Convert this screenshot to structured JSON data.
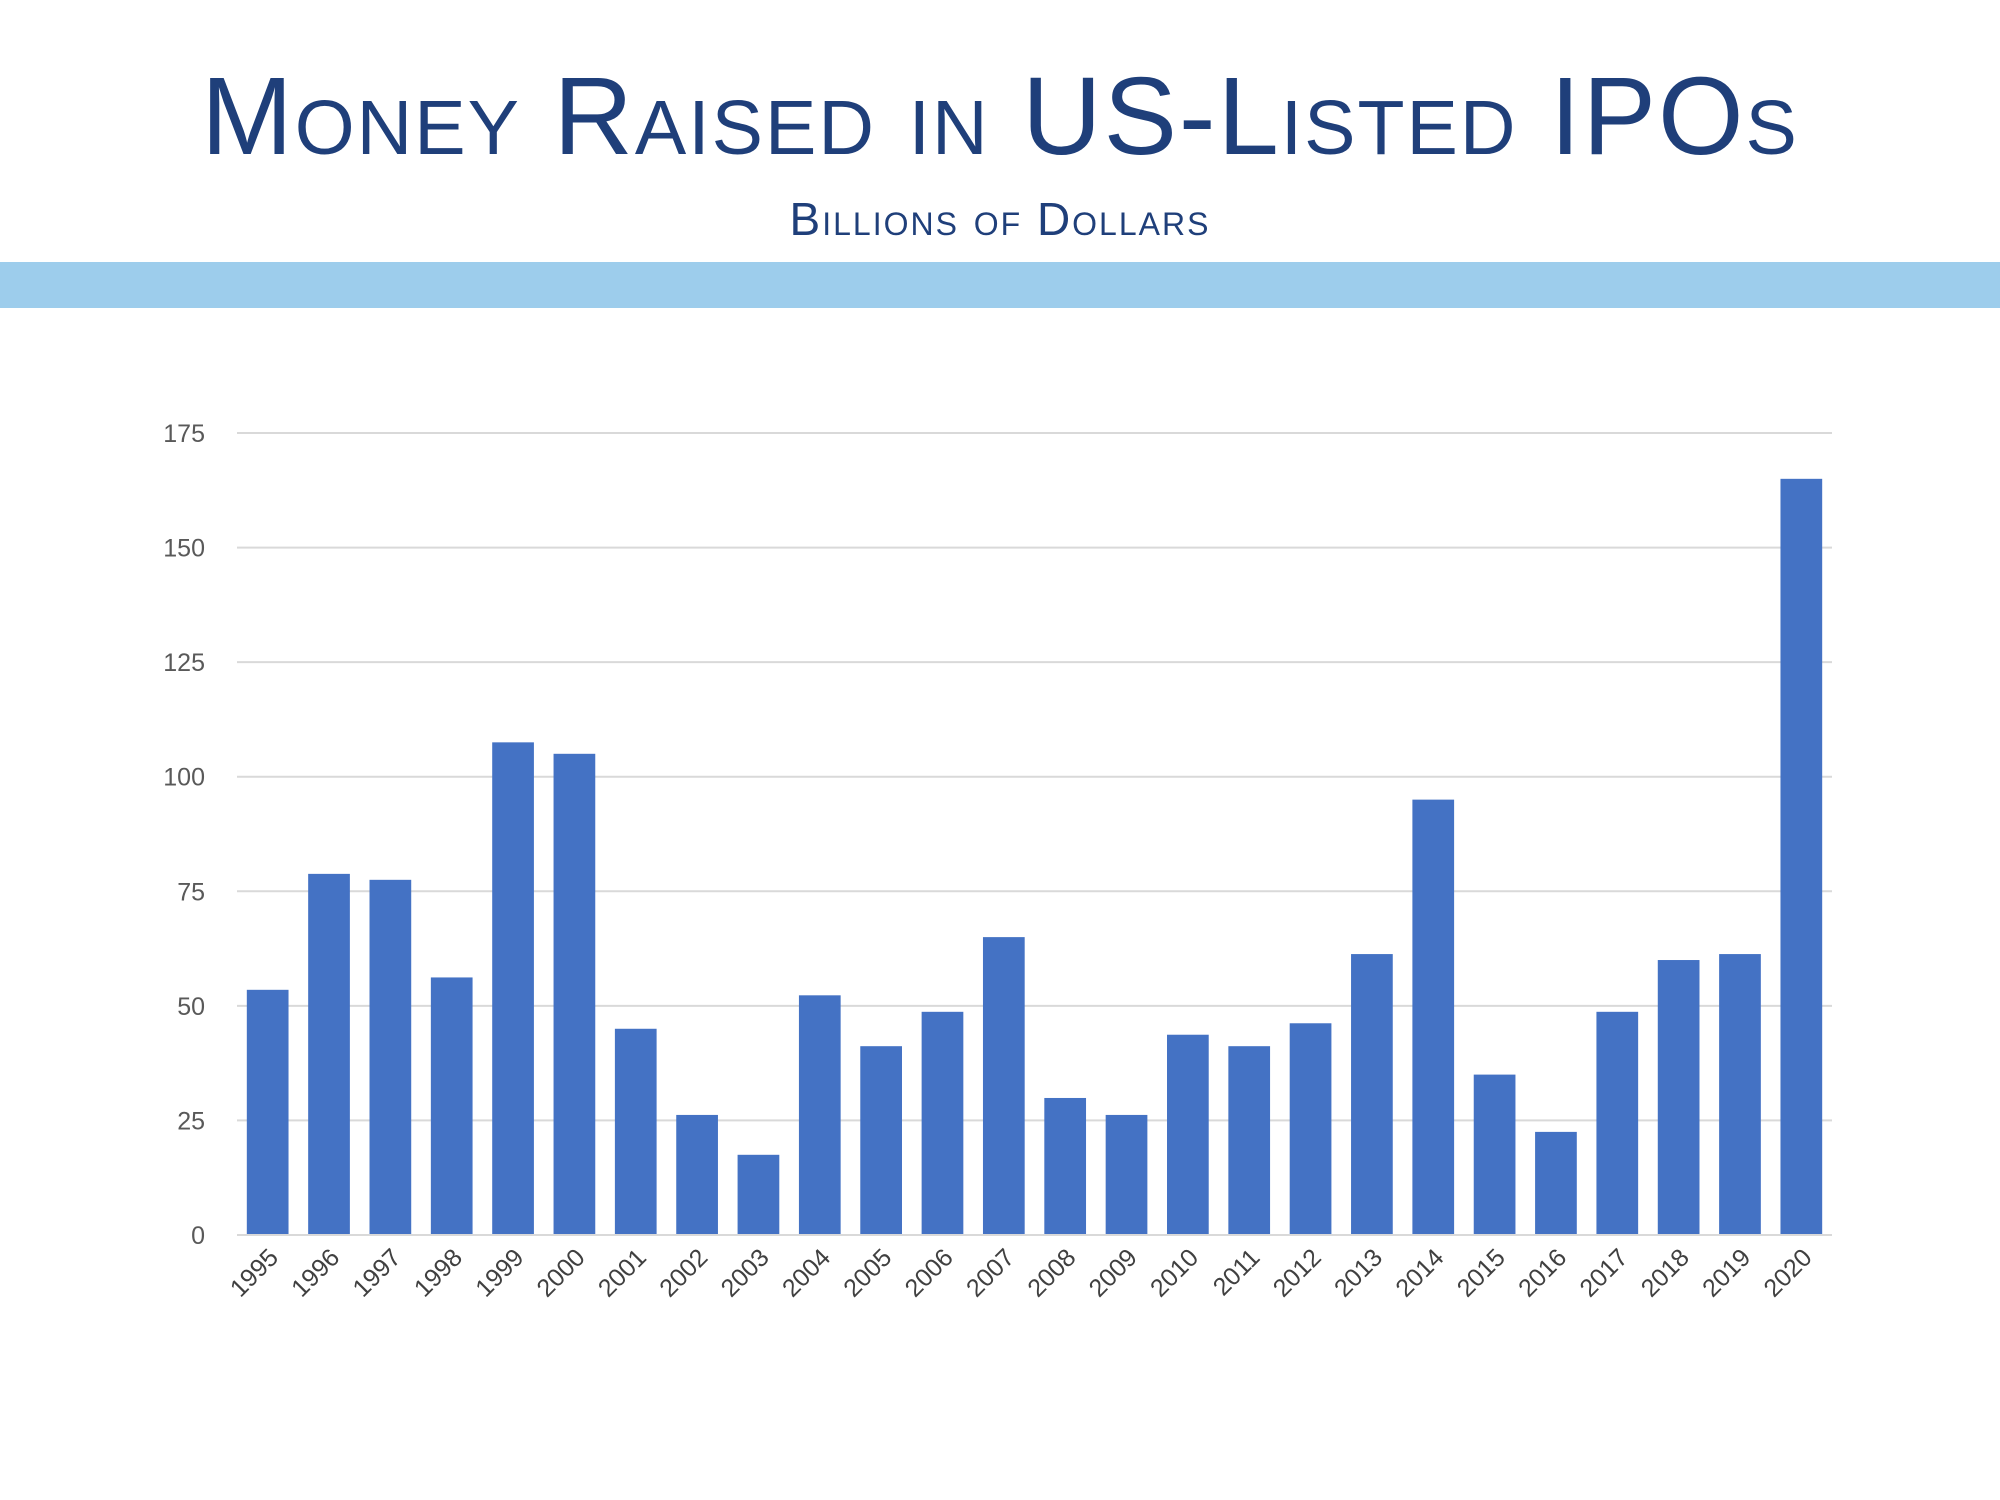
{
  "header": {
    "title": "Money Raised in US-Listed IPOs",
    "subtitle": "Billions of Dollars"
  },
  "colors": {
    "title": "#1f3f7a",
    "band": "#9dcdec",
    "bar": "#4472c4",
    "grid": "#d9d9d9"
  },
  "chart_data": {
    "type": "bar",
    "title": "Money Raised in US-Listed IPOs",
    "subtitle": "Billions of Dollars",
    "xlabel": "",
    "ylabel": "",
    "ylim": [
      0,
      175
    ],
    "yticks": [
      0,
      25,
      50,
      75,
      100,
      125,
      150,
      175
    ],
    "grid": true,
    "legend": "none",
    "categories": [
      "1995",
      "1996",
      "1997",
      "1998",
      "1999",
      "2000",
      "2001",
      "2002",
      "2003",
      "2004",
      "2005",
      "2006",
      "2007",
      "2008",
      "2009",
      "2010",
      "2011",
      "2012",
      "2013",
      "2014",
      "2015",
      "2016",
      "2017",
      "2018",
      "2019",
      "2020"
    ],
    "values": [
      53.5,
      78.8,
      77.5,
      56.2,
      107.5,
      105.0,
      45.0,
      26.2,
      17.5,
      52.3,
      41.2,
      48.7,
      65.0,
      29.9,
      26.2,
      43.7,
      41.2,
      46.2,
      61.3,
      95.0,
      35.0,
      22.5,
      48.7,
      60.0,
      61.3,
      165.0
    ]
  }
}
